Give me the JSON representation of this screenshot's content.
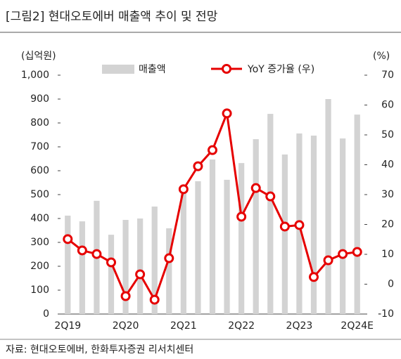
{
  "chart_data": {
    "type": "bar_line",
    "title": "[그림2]    현대오토에버 매출액 추이 및 전망",
    "y_label": "(십억원)",
    "y2_label": "(%)",
    "source": "자료: 현대오토에버, 한화투자증권 리서치센터",
    "categories": [
      "2Q19",
      null,
      null,
      null,
      "2Q20",
      null,
      null,
      null,
      "2Q21",
      null,
      null,
      null,
      "2Q22",
      null,
      null,
      null,
      "2Q23",
      null,
      null,
      null,
      "2Q24E"
    ],
    "series": [
      {
        "name": "매출액",
        "color": "#d3d3d3",
        "kind": "bar",
        "values": [
          412,
          388,
          474,
          332,
          394,
          400,
          450,
          359,
          505,
          556,
          647,
          562,
          632,
          732,
          838,
          668,
          756,
          747,
          900,
          735,
          835
        ]
      },
      {
        "name": "YoY 증가율 (우)",
        "color": "#e60000",
        "kind": "line",
        "axis": "y2",
        "values": [
          15.1,
          11.3,
          10.1,
          7.3,
          -4,
          3.3,
          -5.2,
          8.7,
          31.8,
          39.5,
          44.9,
          57.2,
          22.6,
          32.2,
          29.4,
          19.3,
          19.8,
          2.4,
          8,
          10.1,
          10.8
        ]
      }
    ],
    "ylim": [
      0,
      1000
    ],
    "yticks": [
      0,
      100,
      200,
      300,
      400,
      500,
      600,
      700,
      800,
      900,
      {
        "value": 1000,
        "label": "1,000"
      }
    ],
    "y2lim": [
      -10,
      70
    ],
    "y2ticks": [
      -10,
      0,
      10,
      20,
      30,
      40,
      50,
      60,
      70
    ]
  }
}
